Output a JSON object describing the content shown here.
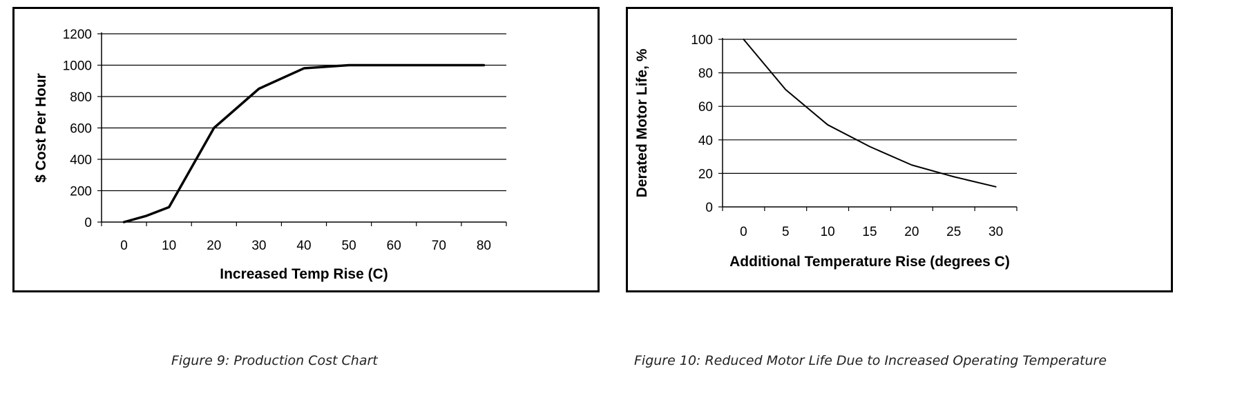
{
  "chart_data": [
    {
      "type": "line",
      "x": [
        0,
        5,
        10,
        20,
        30,
        40,
        50,
        60,
        70,
        80
      ],
      "series": [
        {
          "values": [
            0,
            40,
            95,
            600,
            850,
            980,
            1000,
            1000,
            1000,
            1000
          ]
        }
      ],
      "xticks": [
        "0",
        "10",
        "20",
        "30",
        "40",
        "50",
        "60",
        "70",
        "80"
      ],
      "yticks": [
        "0",
        "200",
        "400",
        "600",
        "800",
        "1000",
        "1200"
      ],
      "xlabel": "Increased Temp Rise (C)",
      "ylabel": "$ Cost Per Hour",
      "xlim": [
        -5,
        85
      ],
      "ylim": [
        0,
        1200
      ],
      "grid": true,
      "caption": "Figure 9: Production Cost Chart",
      "line_color": "#000000"
    },
    {
      "type": "line",
      "x": [
        0,
        5,
        10,
        15,
        20,
        25,
        30
      ],
      "series": [
        {
          "values": [
            100,
            70,
            49,
            36,
            25,
            18,
            12
          ]
        }
      ],
      "xticks": [
        "0",
        "5",
        "10",
        "15",
        "20",
        "25",
        "30"
      ],
      "yticks": [
        "0",
        "20",
        "40",
        "60",
        "80",
        "100"
      ],
      "xlabel": "Additional Temperature Rise (degrees C)",
      "ylabel": "Derated Motor Life, %",
      "xlim": [
        -2.5,
        32.5
      ],
      "ylim": [
        0,
        100
      ],
      "grid": true,
      "caption": "Figure 10: Reduced Motor Life Due to Increased Operating Temperature",
      "line_color": "#000000"
    }
  ]
}
